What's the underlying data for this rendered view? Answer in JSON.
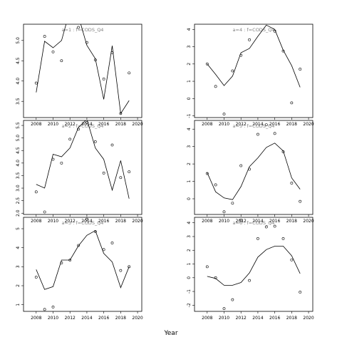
{
  "xlabel": "Year",
  "xticks": [
    2008,
    2010,
    2012,
    2014,
    2016,
    2018,
    2020
  ],
  "chart_data": [
    {
      "type": "line",
      "panel_label": "a=1 : f=CODS_Q4",
      "xlim": [
        2006.5,
        2020.5
      ],
      "ylim": [
        3.1,
        5.4
      ],
      "yticks": [
        3.5,
        4.0,
        4.5,
        5.0
      ],
      "ytick_labels": [
        "3.5",
        "4.0",
        "4.5",
        "5.0"
      ],
      "series": [
        {
          "style": "points",
          "x": [
            2008,
            2009,
            2010,
            2011,
            2012,
            2013,
            2014,
            2015,
            2016,
            2017,
            2018,
            2019
          ],
          "y": [
            3.95,
            5.1,
            4.72,
            4.5,
            5.45,
            5.32,
            4.95,
            4.52,
            4.05,
            4.7,
            3.2,
            4.2
          ]
        },
        {
          "style": "line",
          "x": [
            2008,
            2009,
            2010,
            2011,
            2012,
            2013,
            2014,
            2015,
            2016,
            2017,
            2018,
            2019
          ],
          "y": [
            3.72,
            4.98,
            4.82,
            5.0,
            5.75,
            5.6,
            4.88,
            4.55,
            3.55,
            4.87,
            3.2,
            3.52
          ]
        }
      ]
    },
    {
      "type": "line",
      "panel_label": "a=4 : f=CODS_Q4",
      "xlim": [
        2006.5,
        2020.5
      ],
      "ylim": [
        -1.1,
        4.3
      ],
      "yticks": [
        -1,
        0,
        1,
        2,
        3,
        4
      ],
      "ytick_labels": [
        "-1",
        "0",
        "1",
        "2",
        "3",
        "4"
      ],
      "series": [
        {
          "style": "points",
          "x": [
            2008,
            2009,
            2010,
            2011,
            2012,
            2013,
            2014,
            2015,
            2016,
            2017,
            2018,
            2019
          ],
          "y": [
            2.0,
            0.7,
            -0.9,
            1.6,
            2.5,
            3.4,
            4.55,
            4.65,
            3.9,
            2.75,
            -0.25,
            1.7
          ]
        },
        {
          "style": "line",
          "x": [
            2008,
            2009,
            2010,
            2011,
            2012,
            2013,
            2014,
            2015,
            2016,
            2017,
            2018,
            2019
          ],
          "y": [
            2.0,
            1.4,
            0.75,
            1.3,
            2.65,
            2.9,
            3.6,
            4.25,
            4.0,
            2.8,
            1.9,
            0.65
          ]
        }
      ]
    },
    {
      "type": "line",
      "panel_label": "a=2 : f=CODS_Q4",
      "xlim": [
        2006.5,
        2020.5
      ],
      "ylim": [
        1.95,
        5.7
      ],
      "yticks": [
        2.0,
        2.5,
        3.0,
        3.5,
        4.0,
        4.5,
        5.0,
        5.5
      ],
      "ytick_labels": [
        "2.0",
        "2.5",
        "3.0",
        "3.5",
        "4.0",
        "4.5",
        "5.0",
        "5.5"
      ],
      "series": [
        {
          "style": "points",
          "x": [
            2008,
            2009,
            2010,
            2011,
            2012,
            2013,
            2014,
            2015,
            2016,
            2017,
            2018,
            2019
          ],
          "y": [
            2.85,
            2.05,
            4.15,
            4.0,
            4.95,
            5.35,
            5.62,
            4.85,
            3.6,
            4.72,
            3.42,
            3.65
          ]
        },
        {
          "style": "line",
          "x": [
            2008,
            2009,
            2010,
            2011,
            2012,
            2013,
            2014,
            2015,
            2016,
            2017,
            2018,
            2019
          ],
          "y": [
            3.15,
            3.0,
            4.35,
            4.25,
            4.6,
            5.42,
            5.75,
            4.6,
            4.15,
            2.92,
            4.1,
            2.58
          ]
        }
      ]
    },
    {
      "type": "line",
      "panel_label": "a=5 : f=CODS_Q4",
      "xlim": [
        2006.5,
        2020.5
      ],
      "ylim": [
        -0.9,
        4.5
      ],
      "yticks": [
        0,
        1,
        2,
        3,
        4
      ],
      "ytick_labels": [
        "0",
        "1",
        "2",
        "3",
        "4"
      ],
      "series": [
        {
          "style": "points",
          "x": [
            2008,
            2009,
            2010,
            2011,
            2012,
            2013,
            2014,
            2015,
            2016,
            2017,
            2018,
            2019
          ],
          "y": [
            1.45,
            0.8,
            -0.75,
            -0.25,
            1.9,
            1.7,
            3.7,
            4.25,
            3.75,
            2.7,
            0.9,
            -0.15
          ]
        },
        {
          "style": "line",
          "x": [
            2008,
            2009,
            2010,
            2011,
            2012,
            2013,
            2014,
            2015,
            2016,
            2017,
            2018,
            2019
          ],
          "y": [
            1.5,
            0.4,
            0.05,
            -0.05,
            0.7,
            1.85,
            2.35,
            2.95,
            3.2,
            2.75,
            1.2,
            0.55
          ]
        }
      ]
    },
    {
      "type": "line",
      "panel_label": "a=3 : f=CODS_Q4",
      "xlim": [
        2006.5,
        2020.5
      ],
      "ylim": [
        0.65,
        5.6
      ],
      "yticks": [
        1,
        2,
        3,
        4,
        5
      ],
      "ytick_labels": [
        "1",
        "2",
        "3",
        "4",
        "5"
      ],
      "series": [
        {
          "style": "points",
          "x": [
            2008,
            2009,
            2010,
            2011,
            2012,
            2013,
            2014,
            2015,
            2016,
            2017,
            2018,
            2019
          ],
          "y": [
            2.45,
            0.75,
            0.88,
            3.2,
            3.35,
            4.12,
            5.5,
            4.85,
            3.9,
            4.25,
            2.8,
            3.0
          ]
        },
        {
          "style": "line",
          "x": [
            2008,
            2009,
            2010,
            2011,
            2012,
            2013,
            2014,
            2015,
            2016,
            2017,
            2018,
            2019
          ],
          "y": [
            2.85,
            1.8,
            1.95,
            3.35,
            3.35,
            4.1,
            4.65,
            4.9,
            3.7,
            3.25,
            1.9,
            3.0
          ]
        }
      ]
    },
    {
      "type": "line",
      "panel_label": "a=6 : f=CODS_Q4",
      "xlim": [
        2006.5,
        2020.5
      ],
      "ylim": [
        -2.45,
        4.4
      ],
      "yticks": [
        -2,
        -1,
        0,
        1,
        2,
        3,
        4
      ],
      "ytick_labels": [
        "-2",
        "-1",
        "0",
        "1",
        "2",
        "3",
        "4"
      ],
      "series": [
        {
          "style": "points",
          "x": [
            2008,
            2009,
            2010,
            2011,
            2012,
            2013,
            2014,
            2015,
            2016,
            2017,
            2018,
            2019
          ],
          "y": [
            0.8,
            0.0,
            -2.25,
            -1.6,
            4.2,
            -0.2,
            2.85,
            3.7,
            3.75,
            2.85,
            1.3,
            -1.05
          ]
        },
        {
          "style": "line",
          "x": [
            2008,
            2009,
            2010,
            2011,
            2012,
            2013,
            2014,
            2015,
            2016,
            2017,
            2018,
            2019
          ],
          "y": [
            0.1,
            -0.05,
            -0.55,
            -0.55,
            -0.35,
            0.35,
            1.5,
            2.05,
            2.3,
            2.3,
            1.6,
            0.3
          ]
        }
      ]
    }
  ]
}
